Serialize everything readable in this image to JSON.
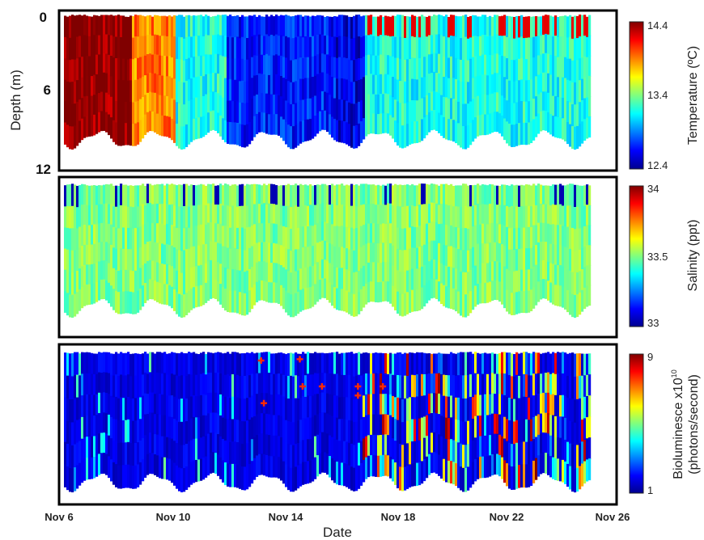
{
  "chart_data": [
    {
      "type": "heatmap",
      "panel": "temperature",
      "ylabel": "Depth (m)",
      "yticks": [
        "0",
        "6",
        "12"
      ],
      "ylim": [
        0,
        12
      ],
      "y_reversed": true,
      "colorbar": {
        "label": "Temperature (ºC)",
        "ticks": [
          "14.4",
          "13.4",
          "12.4"
        ],
        "range": [
          12.4,
          14.4
        ]
      },
      "colormap": "jet",
      "x_range_days": [
        6,
        26
      ],
      "segments": [
        {
          "start": "Nov 6",
          "end": "Nov 8.6",
          "value": 14.4
        },
        {
          "start": "Nov 8.6",
          "end": "Nov 10.2",
          "value": 13.9
        },
        {
          "start": "Nov 10.2",
          "end": "Nov 12",
          "value": 13.2
        },
        {
          "start": "Nov 12",
          "end": "Nov 16",
          "value": 12.7
        },
        {
          "start": "Nov 16",
          "end": "Nov 17",
          "value": 12.6
        },
        {
          "start": "Nov 17",
          "end": "Nov 25",
          "value": 13.2
        }
      ]
    },
    {
      "type": "heatmap",
      "panel": "salinity",
      "colorbar": {
        "label": "Salinity (ppt)",
        "ticks": [
          "34",
          "33.5",
          "33"
        ],
        "range": [
          33,
          34
        ]
      },
      "colormap": "jet",
      "typical_value": 33.5
    },
    {
      "type": "heatmap",
      "panel": "bioluminescence",
      "xlabel": "Date",
      "xticks": [
        "Nov 6",
        "Nov 10",
        "Nov 14",
        "Nov 18",
        "Nov 22",
        "Nov 26"
      ],
      "colorbar": {
        "label_line1": "Bioluminesce x10",
        "label_exp": "10",
        "label_line2": "(photons/second)",
        "ticks": [
          "9",
          "1"
        ],
        "range": [
          1,
          9
        ]
      },
      "colormap": "jet",
      "markers": [
        {
          "date": 13.3,
          "depth_frac": 0.05
        },
        {
          "date": 13.4,
          "depth_frac": 0.38
        },
        {
          "date": 14.7,
          "depth_frac": 0.04
        },
        {
          "date": 14.8,
          "depth_frac": 0.25
        },
        {
          "date": 15.5,
          "depth_frac": 0.25
        },
        {
          "date": 16.8,
          "depth_frac": 0.25
        },
        {
          "date": 16.8,
          "depth_frac": 0.32
        },
        {
          "date": 17.7,
          "depth_frac": 0.25
        }
      ],
      "marker_color": "#ff2a00"
    }
  ]
}
